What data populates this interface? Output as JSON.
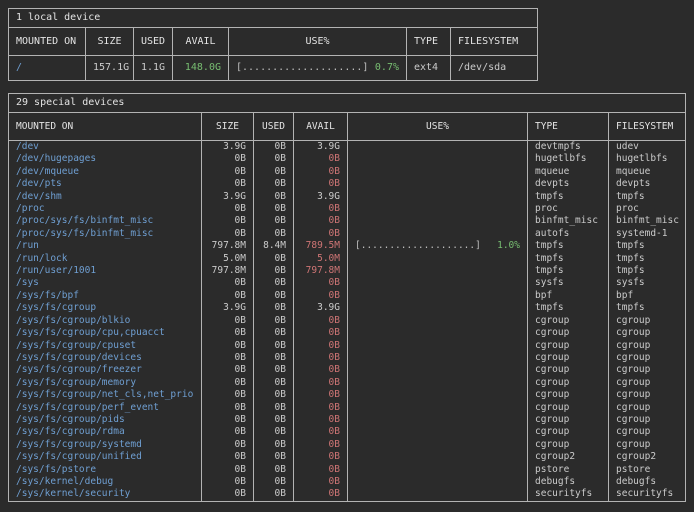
{
  "colors": {
    "background": "#2b2b2b",
    "border": "#b3b3b3",
    "heading": "#e4e4e4",
    "value": "#cbcbcb",
    "path": "#6f9fd2",
    "red": "#cf7575",
    "green": "#77bd71",
    "bar": "#bfbfbf"
  },
  "local_table": {
    "title": "1 local device",
    "columns": [
      "MOUNTED ON",
      "SIZE",
      "USED",
      "AVAIL",
      "USE%",
      "TYPE",
      "FILESYSTEM"
    ],
    "rows": [
      {
        "path": "/",
        "size": "157.1G",
        "used": "1.1G",
        "avail": "148.0G",
        "avail_color": "green",
        "bar": "[....................]",
        "pct": "0.7%",
        "type": "ext4",
        "fs": "/dev/sda"
      }
    ]
  },
  "special_table": {
    "title": "29 special devices",
    "columns": [
      "MOUNTED ON",
      "SIZE",
      "USED",
      "AVAIL",
      "USE%",
      "TYPE",
      "FILESYSTEM"
    ],
    "rows": [
      {
        "path": "/dev",
        "size": "3.9G",
        "used": "0B",
        "avail": "3.9G",
        "avail_color": "value",
        "bar": "",
        "pct": "",
        "type": "devtmpfs",
        "fs": "udev"
      },
      {
        "path": "/dev/hugepages",
        "size": "0B",
        "used": "0B",
        "avail": "0B",
        "avail_color": "red",
        "bar": "",
        "pct": "",
        "type": "hugetlbfs",
        "fs": "hugetlbfs"
      },
      {
        "path": "/dev/mqueue",
        "size": "0B",
        "used": "0B",
        "avail": "0B",
        "avail_color": "red",
        "bar": "",
        "pct": "",
        "type": "mqueue",
        "fs": "mqueue"
      },
      {
        "path": "/dev/pts",
        "size": "0B",
        "used": "0B",
        "avail": "0B",
        "avail_color": "red",
        "bar": "",
        "pct": "",
        "type": "devpts",
        "fs": "devpts"
      },
      {
        "path": "/dev/shm",
        "size": "3.9G",
        "used": "0B",
        "avail": "3.9G",
        "avail_color": "value",
        "bar": "",
        "pct": "",
        "type": "tmpfs",
        "fs": "tmpfs"
      },
      {
        "path": "/proc",
        "size": "0B",
        "used": "0B",
        "avail": "0B",
        "avail_color": "red",
        "bar": "",
        "pct": "",
        "type": "proc",
        "fs": "proc"
      },
      {
        "path": "/proc/sys/fs/binfmt_misc",
        "size": "0B",
        "used": "0B",
        "avail": "0B",
        "avail_color": "red",
        "bar": "",
        "pct": "",
        "type": "binfmt_misc",
        "fs": "binfmt_misc"
      },
      {
        "path": "/proc/sys/fs/binfmt_misc",
        "size": "0B",
        "used": "0B",
        "avail": "0B",
        "avail_color": "red",
        "bar": "",
        "pct": "",
        "type": "autofs",
        "fs": "systemd-1"
      },
      {
        "path": "/run",
        "size": "797.8M",
        "used": "8.4M",
        "avail": "789.5M",
        "avail_color": "red",
        "bar": "[....................]",
        "pct": "1.0%",
        "type": "tmpfs",
        "fs": "tmpfs"
      },
      {
        "path": "/run/lock",
        "size": "5.0M",
        "used": "0B",
        "avail": "5.0M",
        "avail_color": "red",
        "bar": "",
        "pct": "",
        "type": "tmpfs",
        "fs": "tmpfs"
      },
      {
        "path": "/run/user/1001",
        "size": "797.8M",
        "used": "0B",
        "avail": "797.8M",
        "avail_color": "red",
        "bar": "",
        "pct": "",
        "type": "tmpfs",
        "fs": "tmpfs"
      },
      {
        "path": "/sys",
        "size": "0B",
        "used": "0B",
        "avail": "0B",
        "avail_color": "red",
        "bar": "",
        "pct": "",
        "type": "sysfs",
        "fs": "sysfs"
      },
      {
        "path": "/sys/fs/bpf",
        "size": "0B",
        "used": "0B",
        "avail": "0B",
        "avail_color": "red",
        "bar": "",
        "pct": "",
        "type": "bpf",
        "fs": "bpf"
      },
      {
        "path": "/sys/fs/cgroup",
        "size": "3.9G",
        "used": "0B",
        "avail": "3.9G",
        "avail_color": "value",
        "bar": "",
        "pct": "",
        "type": "tmpfs",
        "fs": "tmpfs"
      },
      {
        "path": "/sys/fs/cgroup/blkio",
        "size": "0B",
        "used": "0B",
        "avail": "0B",
        "avail_color": "red",
        "bar": "",
        "pct": "",
        "type": "cgroup",
        "fs": "cgroup"
      },
      {
        "path": "/sys/fs/cgroup/cpu,cpuacct",
        "size": "0B",
        "used": "0B",
        "avail": "0B",
        "avail_color": "red",
        "bar": "",
        "pct": "",
        "type": "cgroup",
        "fs": "cgroup"
      },
      {
        "path": "/sys/fs/cgroup/cpuset",
        "size": "0B",
        "used": "0B",
        "avail": "0B",
        "avail_color": "red",
        "bar": "",
        "pct": "",
        "type": "cgroup",
        "fs": "cgroup"
      },
      {
        "path": "/sys/fs/cgroup/devices",
        "size": "0B",
        "used": "0B",
        "avail": "0B",
        "avail_color": "red",
        "bar": "",
        "pct": "",
        "type": "cgroup",
        "fs": "cgroup"
      },
      {
        "path": "/sys/fs/cgroup/freezer",
        "size": "0B",
        "used": "0B",
        "avail": "0B",
        "avail_color": "red",
        "bar": "",
        "pct": "",
        "type": "cgroup",
        "fs": "cgroup"
      },
      {
        "path": "/sys/fs/cgroup/memory",
        "size": "0B",
        "used": "0B",
        "avail": "0B",
        "avail_color": "red",
        "bar": "",
        "pct": "",
        "type": "cgroup",
        "fs": "cgroup"
      },
      {
        "path": "/sys/fs/cgroup/net_cls,net_prio",
        "size": "0B",
        "used": "0B",
        "avail": "0B",
        "avail_color": "red",
        "bar": "",
        "pct": "",
        "type": "cgroup",
        "fs": "cgroup"
      },
      {
        "path": "/sys/fs/cgroup/perf_event",
        "size": "0B",
        "used": "0B",
        "avail": "0B",
        "avail_color": "red",
        "bar": "",
        "pct": "",
        "type": "cgroup",
        "fs": "cgroup"
      },
      {
        "path": "/sys/fs/cgroup/pids",
        "size": "0B",
        "used": "0B",
        "avail": "0B",
        "avail_color": "red",
        "bar": "",
        "pct": "",
        "type": "cgroup",
        "fs": "cgroup"
      },
      {
        "path": "/sys/fs/cgroup/rdma",
        "size": "0B",
        "used": "0B",
        "avail": "0B",
        "avail_color": "red",
        "bar": "",
        "pct": "",
        "type": "cgroup",
        "fs": "cgroup"
      },
      {
        "path": "/sys/fs/cgroup/systemd",
        "size": "0B",
        "used": "0B",
        "avail": "0B",
        "avail_color": "red",
        "bar": "",
        "pct": "",
        "type": "cgroup",
        "fs": "cgroup"
      },
      {
        "path": "/sys/fs/cgroup/unified",
        "size": "0B",
        "used": "0B",
        "avail": "0B",
        "avail_color": "red",
        "bar": "",
        "pct": "",
        "type": "cgroup2",
        "fs": "cgroup2"
      },
      {
        "path": "/sys/fs/pstore",
        "size": "0B",
        "used": "0B",
        "avail": "0B",
        "avail_color": "red",
        "bar": "",
        "pct": "",
        "type": "pstore",
        "fs": "pstore"
      },
      {
        "path": "/sys/kernel/debug",
        "size": "0B",
        "used": "0B",
        "avail": "0B",
        "avail_color": "red",
        "bar": "",
        "pct": "",
        "type": "debugfs",
        "fs": "debugfs"
      },
      {
        "path": "/sys/kernel/security",
        "size": "0B",
        "used": "0B",
        "avail": "0B",
        "avail_color": "red",
        "bar": "",
        "pct": "",
        "type": "securityfs",
        "fs": "securityfs"
      }
    ]
  }
}
